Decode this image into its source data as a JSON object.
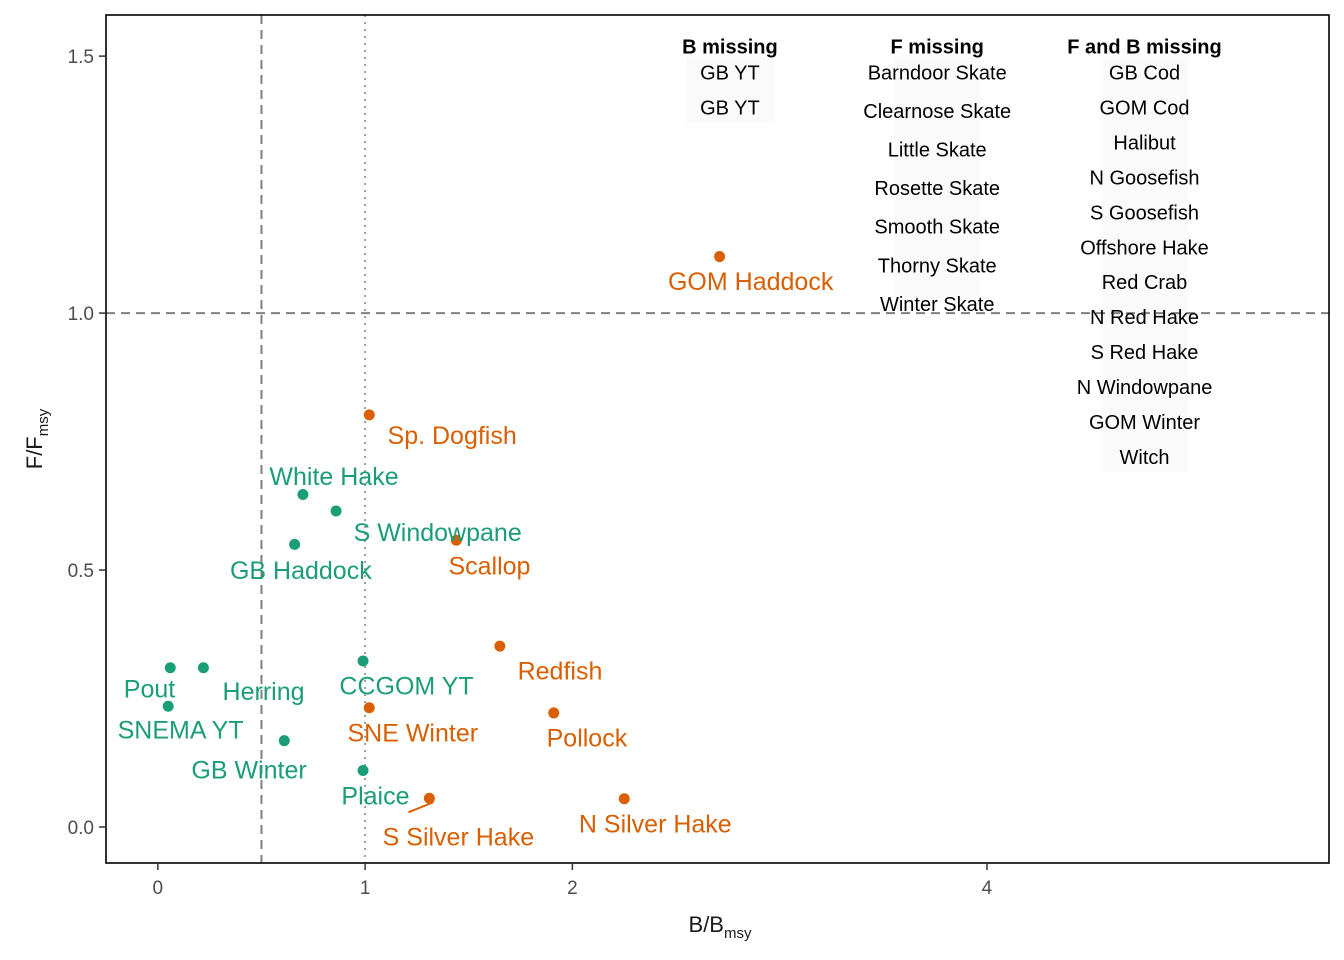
{
  "chart_data": {
    "type": "scatter",
    "xlabel": "B/B",
    "xlabel_sub": "msy",
    "ylabel": "F/F",
    "ylabel_sub": "msy",
    "xlim": [
      -0.25,
      5.65
    ],
    "ylim": [
      -0.07,
      1.58
    ],
    "x_ticks": [
      {
        "value": 0,
        "label": "0"
      },
      {
        "value": 1,
        "label": "1"
      },
      {
        "value": 2,
        "label": "2"
      },
      {
        "value": 4,
        "label": "4"
      }
    ],
    "y_ticks": [
      {
        "value": 0.0,
        "label": "0.0"
      },
      {
        "value": 0.5,
        "label": "0.5"
      },
      {
        "value": 1.0,
        "label": "1.0"
      },
      {
        "value": 1.5,
        "label": "1.5"
      }
    ],
    "grid": false,
    "reference_lines": [
      {
        "axis": "x",
        "value": 0.5,
        "style": "dashed"
      },
      {
        "axis": "x",
        "value": 1.0,
        "style": "dotted"
      },
      {
        "axis": "y",
        "value": 1.0,
        "style": "dashed"
      }
    ],
    "colors": {
      "green": "#1b9e77",
      "orange": "#d95f02"
    },
    "points": [
      {
        "label": "Pout",
        "x": 0.06,
        "y": 0.31,
        "color": "green",
        "lx": -0.04,
        "ly": 0.27
      },
      {
        "label": "Herring",
        "x": 0.22,
        "y": 0.31,
        "color": "green",
        "lx": 0.51,
        "ly": 0.265
      },
      {
        "label": "SNEMA YT",
        "x": 0.05,
        "y": 0.235,
        "color": "green",
        "lx": 0.11,
        "ly": 0.19
      },
      {
        "label": "GB Winter",
        "x": 0.61,
        "y": 0.168,
        "color": "green",
        "lx": 0.44,
        "ly": 0.112
      },
      {
        "label": "Plaice",
        "x": 0.99,
        "y": 0.11,
        "color": "green",
        "lx": 1.05,
        "ly": 0.061
      },
      {
        "label": "CCGOM YT",
        "x": 0.99,
        "y": 0.323,
        "color": "green",
        "lx": 1.2,
        "ly": 0.275
      },
      {
        "label": "GB Haddock",
        "x": 0.66,
        "y": 0.55,
        "color": "green",
        "lx": 0.69,
        "ly": 0.5
      },
      {
        "label": "S Windowpane",
        "x": 0.86,
        "y": 0.615,
        "color": "green",
        "lx": 1.35,
        "ly": 0.574
      },
      {
        "label": "White Hake",
        "x": 0.7,
        "y": 0.647,
        "color": "green",
        "lx": 0.85,
        "ly": 0.683
      },
      {
        "label": "Sp. Dogfish",
        "x": 1.02,
        "y": 0.802,
        "color": "orange",
        "lx": 1.42,
        "ly": 0.763
      },
      {
        "label": "Scallop",
        "x": 1.44,
        "y": 0.558,
        "color": "orange",
        "lx": 1.6,
        "ly": 0.509
      },
      {
        "label": "Redfish",
        "x": 1.65,
        "y": 0.352,
        "color": "orange",
        "lx": 1.94,
        "ly": 0.305
      },
      {
        "label": "Pollock",
        "x": 1.91,
        "y": 0.222,
        "color": "orange",
        "lx": 2.07,
        "ly": 0.174
      },
      {
        "label": "SNE Winter",
        "x": 1.02,
        "y": 0.232,
        "color": "orange",
        "lx": 1.23,
        "ly": 0.184
      },
      {
        "label": "S Silver Hake",
        "x": 1.31,
        "y": 0.056,
        "color": "orange",
        "lx": 1.45,
        "ly": -0.018,
        "leader": true
      },
      {
        "label": "N Silver Hake",
        "x": 2.25,
        "y": 0.055,
        "color": "orange",
        "lx": 2.4,
        "ly": 0.007
      },
      {
        "label": "GOM Haddock",
        "x": 2.71,
        "y": 1.11,
        "color": "orange",
        "lx": 2.86,
        "ly": 1.062
      }
    ],
    "missing_table": [
      {
        "heading": "B missing",
        "x": 2.76,
        "items": [
          "GB YT",
          "GB YT"
        ]
      },
      {
        "heading": "F missing",
        "x": 3.76,
        "items": [
          "Barndoor Skate",
          "Clearnose Skate",
          "Little Skate",
          "Rosette Skate",
          "Smooth Skate",
          "Thorny Skate",
          "Winter Skate"
        ]
      },
      {
        "heading": "F and B missing",
        "x": 4.76,
        "items": [
          "GB Cod",
          "GOM Cod",
          "Halibut",
          "N Goosefish",
          "S Goosefish",
          "Offshore Hake",
          "Red Crab",
          "N Red Hake",
          "S Red Hake",
          "N Windowpane",
          "GOM Winter",
          "Witch"
        ]
      }
    ]
  }
}
